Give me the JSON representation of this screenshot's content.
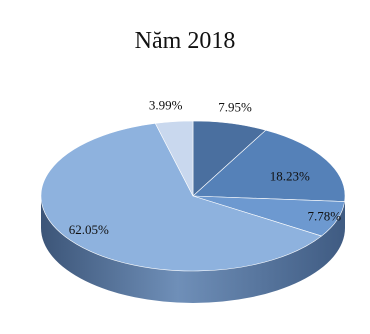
{
  "chart_data": {
    "type": "pie",
    "title": "Năm 2018",
    "slices": [
      {
        "label": "7.95%",
        "value": 7.95,
        "color": "#4a6f9f"
      },
      {
        "label": "18.23%",
        "value": 18.23,
        "color": "#5581b8"
      },
      {
        "label": "7.78%",
        "value": 7.78,
        "color": "#6d99d0"
      },
      {
        "label": "62.05%",
        "value": 62.05,
        "color": "#8eb2de"
      },
      {
        "label": "3.99%",
        "value": 3.99,
        "color": "#c9d8ee"
      }
    ],
    "start_angle_deg": 90,
    "direction": "clockwise",
    "style": "3d"
  }
}
